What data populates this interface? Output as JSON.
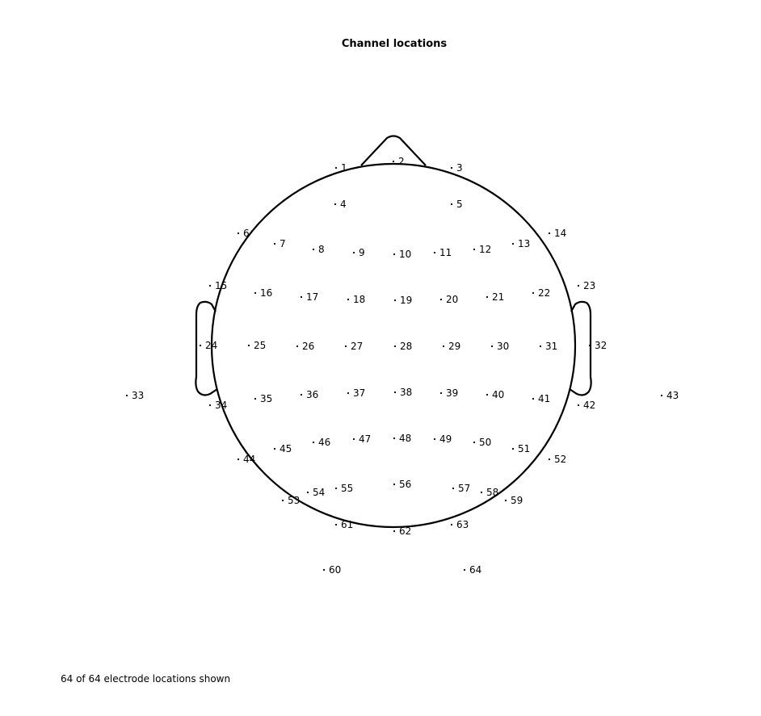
{
  "title": "Channel locations",
  "footer": "64 of 64 electrode locations shown",
  "colors": {
    "outline": "#000000",
    "marker": "#000000",
    "background": "#ffffff"
  },
  "electrodes": [
    "1",
    "2",
    "3",
    "4",
    "5",
    "6",
    "7",
    "8",
    "9",
    "10",
    "11",
    "12",
    "13",
    "14",
    "15",
    "16",
    "17",
    "18",
    "19",
    "20",
    "21",
    "22",
    "23",
    "24",
    "25",
    "26",
    "27",
    "28",
    "29",
    "30",
    "31",
    "32",
    "33",
    "34",
    "35",
    "36",
    "37",
    "38",
    "39",
    "40",
    "41",
    "42",
    "43",
    "44",
    "45",
    "46",
    "47",
    "48",
    "49",
    "50",
    "51",
    "52",
    "53",
    "54",
    "55",
    "56",
    "57",
    "58",
    "59",
    "60",
    "61",
    "62",
    "63",
    "64"
  ]
}
